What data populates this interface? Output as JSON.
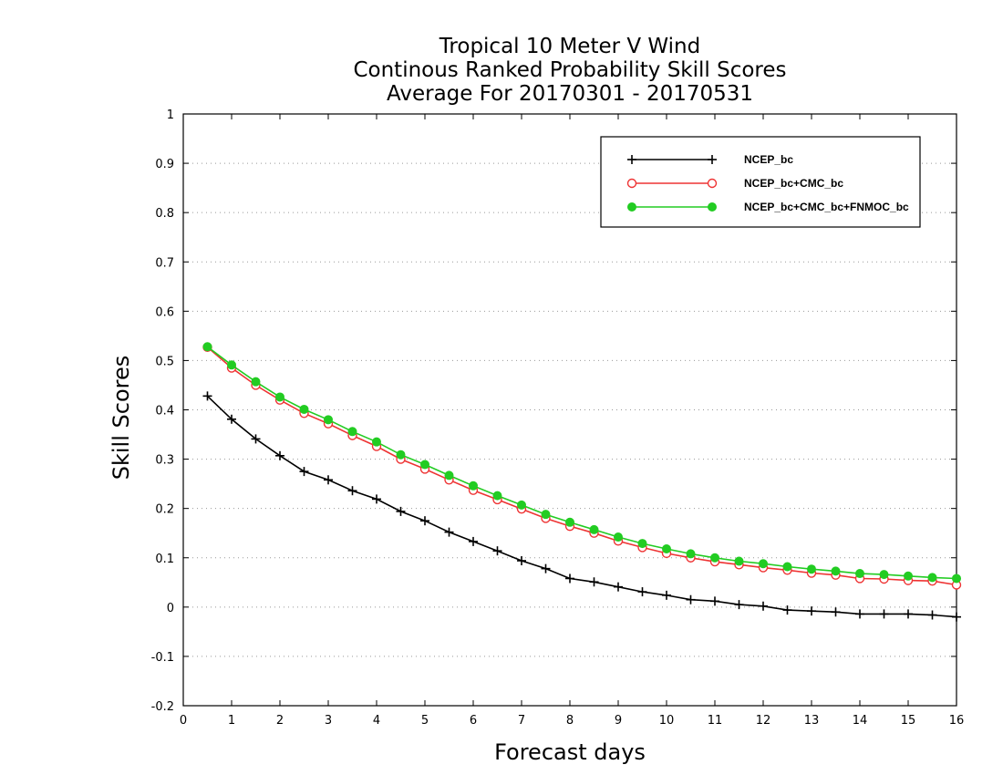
{
  "chart_data": {
    "type": "line",
    "title": [
      "Tropical 10 Meter V Wind",
      "Continous Ranked Probability Skill Scores",
      "Average For 20170301 - 20170531"
    ],
    "xlabel": "Forecast days",
    "ylabel": "Skill Scores",
    "xlim": [
      0,
      16
    ],
    "ylim": [
      -0.2,
      1
    ],
    "xticks": [
      0,
      1,
      2,
      3,
      4,
      5,
      6,
      7,
      8,
      9,
      10,
      11,
      12,
      13,
      14,
      15,
      16
    ],
    "yticks": [
      -0.2,
      -0.1,
      0,
      0.1,
      0.2,
      0.3,
      0.4,
      0.5,
      0.6,
      0.7,
      0.8,
      0.9,
      1
    ],
    "ytick_labels": [
      "-0.2",
      "-0.1",
      "0",
      "0.1",
      "0.2",
      "0.3",
      "0.4",
      "0.5",
      "0.6",
      "0.7",
      "0.8",
      "0.9",
      "1"
    ],
    "grid": "horizontal dotted",
    "legend_position": "top-right",
    "x": [
      0.5,
      1,
      1.5,
      2,
      2.5,
      3,
      3.5,
      4,
      4.5,
      5,
      5.5,
      6,
      6.5,
      7,
      7.5,
      8,
      8.5,
      9,
      9.5,
      10,
      10.5,
      11,
      11.5,
      12,
      12.5,
      13,
      13.5,
      14,
      14.5,
      15,
      15.5,
      16
    ],
    "series": [
      {
        "name": "NCEP_bc",
        "color": "#000000",
        "marker": "plus",
        "values": [
          0.428,
          0.381,
          0.341,
          0.307,
          0.275,
          0.258,
          0.236,
          0.219,
          0.194,
          0.175,
          0.152,
          0.133,
          0.114,
          0.094,
          0.078,
          0.058,
          0.051,
          0.041,
          0.031,
          0.024,
          0.015,
          0.012,
          0.005,
          0.002,
          -0.006,
          -0.008,
          -0.01,
          -0.014,
          -0.014,
          -0.014,
          -0.016,
          -0.02
        ]
      },
      {
        "name": "NCEP_bc+CMC_bc",
        "color": "#ee3333",
        "marker": "open-circle",
        "values": [
          0.527,
          0.485,
          0.45,
          0.42,
          0.393,
          0.372,
          0.348,
          0.326,
          0.3,
          0.28,
          0.258,
          0.237,
          0.218,
          0.199,
          0.18,
          0.164,
          0.15,
          0.134,
          0.121,
          0.109,
          0.1,
          0.092,
          0.086,
          0.08,
          0.075,
          0.069,
          0.065,
          0.058,
          0.057,
          0.054,
          0.053,
          0.045
        ]
      },
      {
        "name": "NCEP_bc+CMC_bc+FNMOC_bc",
        "color": "#22cc22",
        "marker": "filled-circle",
        "values": [
          0.528,
          0.491,
          0.457,
          0.426,
          0.401,
          0.38,
          0.356,
          0.335,
          0.309,
          0.289,
          0.267,
          0.246,
          0.226,
          0.207,
          0.188,
          0.172,
          0.157,
          0.142,
          0.129,
          0.118,
          0.108,
          0.1,
          0.093,
          0.088,
          0.082,
          0.077,
          0.073,
          0.068,
          0.066,
          0.063,
          0.06,
          0.058
        ]
      }
    ]
  }
}
